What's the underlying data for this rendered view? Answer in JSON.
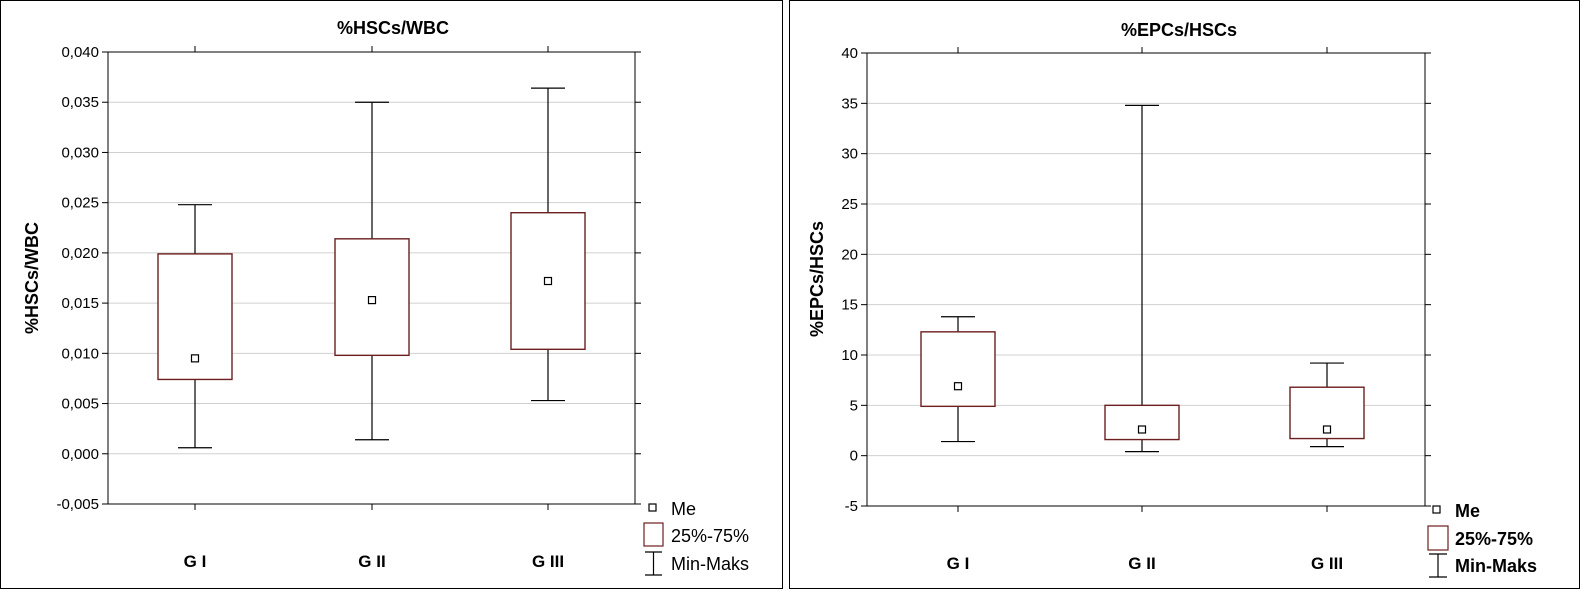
{
  "chart_data": [
    {
      "type": "box",
      "title": "%HSCs/WBC",
      "ylabel": "%HSCs/WBC",
      "xlabel": "",
      "ylim": [
        -0.005,
        0.04
      ],
      "yticks": [
        "0,040",
        "0,035",
        "0,030",
        "0,025",
        "0,020",
        "0,015",
        "0,010",
        "0,005",
        "0,000",
        "-0,005"
      ],
      "ytick_values": [
        0.04,
        0.035,
        0.03,
        0.025,
        0.02,
        0.015,
        0.01,
        0.005,
        0.0,
        -0.005
      ],
      "grid": true,
      "categories": [
        "G I",
        "G II",
        "G III"
      ],
      "series": [
        {
          "min": 0.0006,
          "q1": 0.0074,
          "median": 0.0095,
          "q3": 0.0199,
          "max": 0.0248
        },
        {
          "min": 0.0014,
          "q1": 0.0098,
          "median": 0.0153,
          "q3": 0.0214,
          "max": 0.035
        },
        {
          "min": 0.0053,
          "q1": 0.0104,
          "median": 0.0172,
          "q3": 0.024,
          "max": 0.0364
        }
      ],
      "legend": [
        {
          "symbol": "median",
          "label": "Me"
        },
        {
          "symbol": "box",
          "label": "25%-75%"
        },
        {
          "symbol": "whisker",
          "label": "Min-Maks"
        }
      ],
      "legend_position": "bottom-right"
    },
    {
      "type": "box",
      "title": "%EPCs/HSCs",
      "ylabel": "%EPCs/HSCs",
      "xlabel": "",
      "ylim": [
        -5,
        40
      ],
      "yticks": [
        "40",
        "35",
        "30",
        "25",
        "20",
        "15",
        "10",
        "5",
        "0",
        "-5"
      ],
      "ytick_values": [
        40,
        35,
        30,
        25,
        20,
        15,
        10,
        5,
        0,
        -5
      ],
      "grid": true,
      "categories": [
        "G I",
        "G II",
        "G III"
      ],
      "series": [
        {
          "min": 1.4,
          "q1": 4.9,
          "median": 6.9,
          "q3": 12.3,
          "max": 13.8
        },
        {
          "min": 0.4,
          "q1": 1.6,
          "median": 2.6,
          "q3": 5.0,
          "max": 34.8
        },
        {
          "min": 0.9,
          "q1": 1.7,
          "median": 2.6,
          "q3": 6.8,
          "max": 9.2
        }
      ],
      "legend": [
        {
          "symbol": "median",
          "label": "Me"
        },
        {
          "symbol": "box",
          "label": "25%-75%"
        },
        {
          "symbol": "whisker",
          "label": "Min-Maks"
        }
      ],
      "legend_position": "bottom-right"
    }
  ],
  "colors": {
    "box_stroke": "#6b1f1f",
    "axis": "#000000",
    "grid": "#d0d0d0",
    "median_marker": "#000000"
  }
}
